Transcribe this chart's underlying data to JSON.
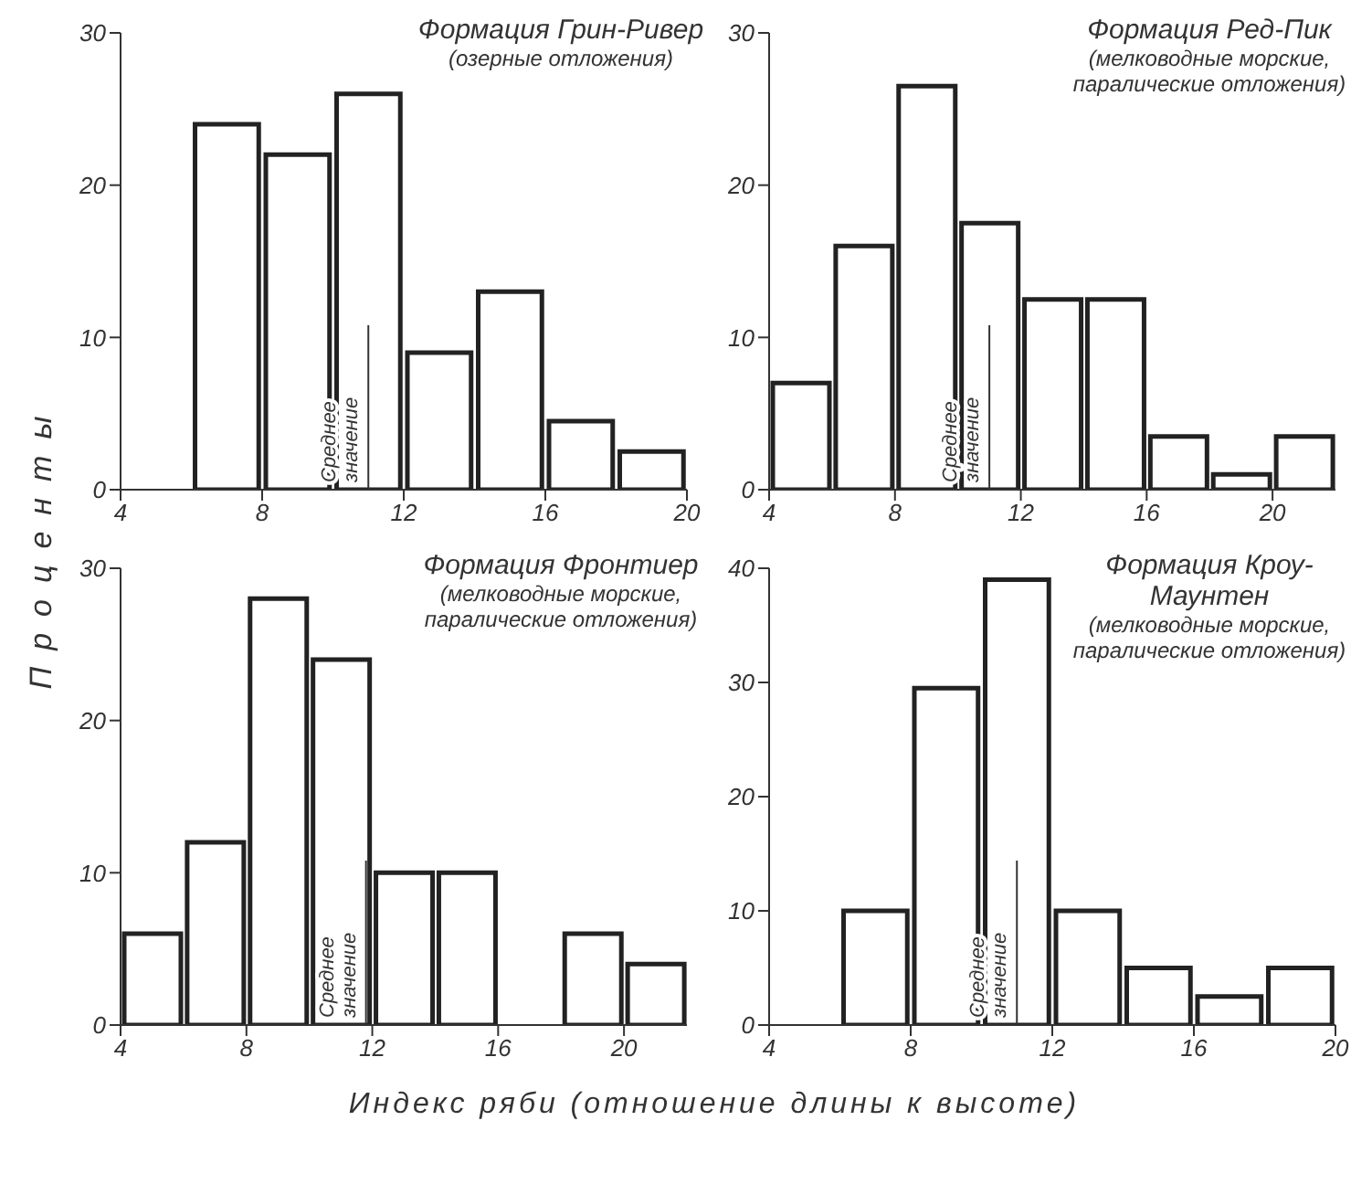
{
  "chart_data": [
    {
      "type": "histogram",
      "title": "Формация Грин-Ривер",
      "subtitle": "(озерные отложения)",
      "ylabel": "Проценты",
      "bins": [
        6,
        8,
        10,
        12,
        14,
        16,
        18,
        20
      ],
      "values": [
        24,
        22,
        26,
        9,
        13,
        4.5,
        2.5
      ],
      "color": "#222222",
      "xlim": [
        4,
        20
      ],
      "xticks": [
        4,
        8,
        12,
        16,
        20
      ],
      "ylim": [
        0,
        30
      ],
      "yticks": [
        0,
        10,
        20,
        30
      ],
      "ref_lines": [
        {
          "axis": "x",
          "value": 11,
          "label": "Среднее значение"
        }
      ]
    },
    {
      "type": "histogram",
      "title": "Формация Ред-Пик",
      "subtitle": "(мелководные морские, паралические отложения)",
      "bins": [
        4,
        6,
        8,
        10,
        12,
        14,
        16,
        18,
        20,
        22
      ],
      "values": [
        7,
        16,
        26.5,
        17.5,
        12.5,
        12.5,
        3.5,
        1,
        3.5
      ],
      "color": "#222222",
      "xlim": [
        4,
        22
      ],
      "xticks": [
        4,
        8,
        12,
        16,
        20
      ],
      "ylim": [
        0,
        30
      ],
      "yticks": [
        0,
        10,
        20,
        30
      ],
      "ref_lines": [
        {
          "axis": "x",
          "value": 11,
          "label": "Среднее значение"
        }
      ]
    },
    {
      "type": "histogram",
      "title": "Формация Фронтиер",
      "subtitle": "(мелководные морские, паралические отложения)",
      "xlabel": "Индекс ряби (отношение длины к высоте)",
      "bins": [
        4,
        6,
        8,
        10,
        12,
        14,
        16,
        18,
        20,
        22
      ],
      "values": [
        6,
        12,
        28,
        24,
        10,
        10,
        0,
        6,
        4
      ],
      "color": "#222222",
      "xlim": [
        4,
        22
      ],
      "xticks": [
        4,
        8,
        12,
        16,
        20
      ],
      "ylim": [
        0,
        30
      ],
      "yticks": [
        0,
        10,
        20,
        30
      ],
      "ref_lines": [
        {
          "axis": "x",
          "value": 11.8,
          "label": "Среднее значение"
        }
      ]
    },
    {
      "type": "histogram",
      "title": "Формация Кроу-Маунтен",
      "subtitle": "(мелководные морские, паралические отложения)",
      "bins": [
        6,
        8,
        10,
        12,
        14,
        16,
        18,
        20
      ],
      "values": [
        10,
        29.5,
        39,
        10,
        5,
        2.5,
        5
      ],
      "color": "#222222",
      "xlim": [
        4,
        20
      ],
      "xticks": [
        4,
        8,
        12,
        16,
        20
      ],
      "ylim": [
        0,
        40
      ],
      "yticks": [
        0,
        10,
        20,
        30,
        40
      ],
      "ref_lines": [
        {
          "axis": "x",
          "value": 11,
          "label": "Среднее значение"
        }
      ]
    }
  ]
}
